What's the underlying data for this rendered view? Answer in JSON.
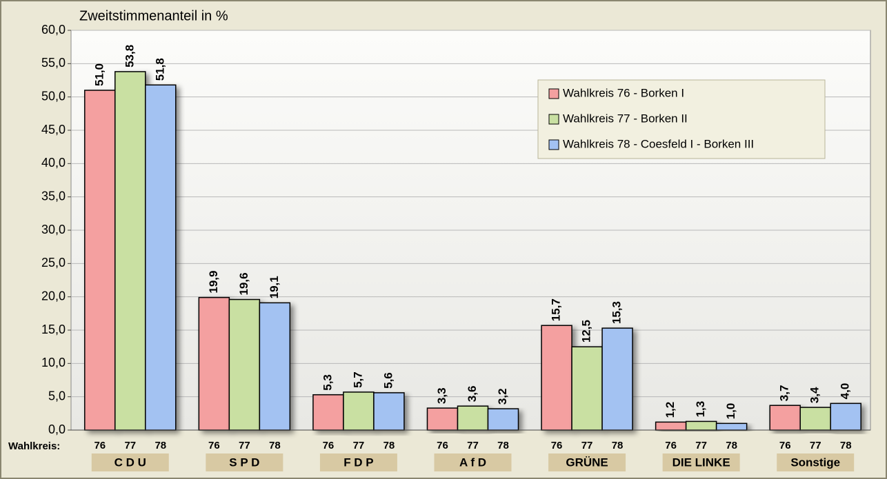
{
  "chart_data": {
    "type": "bar",
    "y_label": "Zweitstimmenanteil in %",
    "x_label": "Wahlkreis:",
    "bar_labels": [
      "76",
      "77",
      "78"
    ],
    "categories": [
      "C D U",
      "S P D",
      "F D P",
      "A f D",
      "GRÜNE",
      "DIE LINKE",
      "Sonstige"
    ],
    "series": [
      {
        "name": "Wahlkreis 76 - Borken I",
        "color": "#f4a0a0",
        "values": [
          51.0,
          19.9,
          5.3,
          3.3,
          15.7,
          1.2,
          3.7
        ],
        "value_labels": [
          "51,0",
          "19,9",
          "5,3",
          "3,3",
          "15,7",
          "1,2",
          "3,7"
        ]
      },
      {
        "name": "Wahlkreis 77 - Borken II",
        "color": "#c9e0a2",
        "values": [
          53.8,
          19.6,
          5.7,
          3.6,
          12.5,
          1.3,
          3.4
        ],
        "value_labels": [
          "53,8",
          "19,6",
          "5,7",
          "3,6",
          "12,5",
          "1,3",
          "3,4"
        ]
      },
      {
        "name": "Wahlkreis 78 - Coesfeld I - Borken III",
        "color": "#a3c2f2",
        "values": [
          51.8,
          19.1,
          5.6,
          3.2,
          15.3,
          1.0,
          4.0
        ],
        "value_labels": [
          "51,8",
          "19,1",
          "5,6",
          "3,2",
          "15,3",
          "1,0",
          "4,0"
        ]
      }
    ],
    "ylim": [
      0,
      60
    ],
    "yticks": [
      {
        "value": 0,
        "label": "0,0"
      },
      {
        "value": 5,
        "label": "5,0"
      },
      {
        "value": 10,
        "label": "10,0"
      },
      {
        "value": 15,
        "label": "15,0"
      },
      {
        "value": 20,
        "label": "20,0"
      },
      {
        "value": 25,
        "label": "25,0"
      },
      {
        "value": 30,
        "label": "30,0"
      },
      {
        "value": 35,
        "label": "35,0"
      },
      {
        "value": 40,
        "label": "40,0"
      },
      {
        "value": 45,
        "label": "45,0"
      },
      {
        "value": 50,
        "label": "50,0"
      },
      {
        "value": 55,
        "label": "55,0"
      },
      {
        "value": 60,
        "label": "60,0"
      }
    ],
    "grid": true,
    "legend": "top-right"
  }
}
